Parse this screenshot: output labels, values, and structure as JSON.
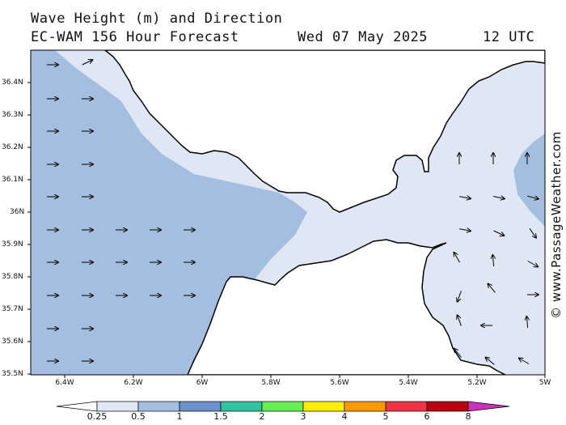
{
  "header": {
    "title_line1": "Wave Height (m) and Direction",
    "title_line2": "EC-WAM 156 Hour Forecast",
    "date": "Wed 07 May 2025",
    "time": "12 UTC"
  },
  "credit": "© www.PassageWeather.com",
  "axes": {
    "lat_labels": [
      "36.4N",
      "36.3N",
      "36.2N",
      "36.1N",
      "36N",
      "35.9N",
      "35.8N",
      "35.7N",
      "35.6N",
      "35.5N"
    ],
    "lon_labels": [
      "6.4W",
      "6.2W",
      "6W",
      "5.8W",
      "5.6W",
      "5.4W",
      "5.2W",
      "5W"
    ]
  },
  "colorbar": {
    "labels": [
      "0.25",
      "0.5",
      "1",
      "1.5",
      "2",
      "3",
      "4",
      "5",
      "6",
      "8"
    ],
    "colors": [
      "#ffffff",
      "#dfe7f4",
      "#a3bedf",
      "#6b90cc",
      "#33c2a0",
      "#66ee55",
      "#ffee00",
      "#ff9900",
      "#ee3344",
      "#bb0011",
      "#cc33bb"
    ]
  },
  "wave_colors": {
    "sea_dark": "#a3bedf",
    "sea_light": "#dfe7f4",
    "land": "#ffffff"
  }
}
